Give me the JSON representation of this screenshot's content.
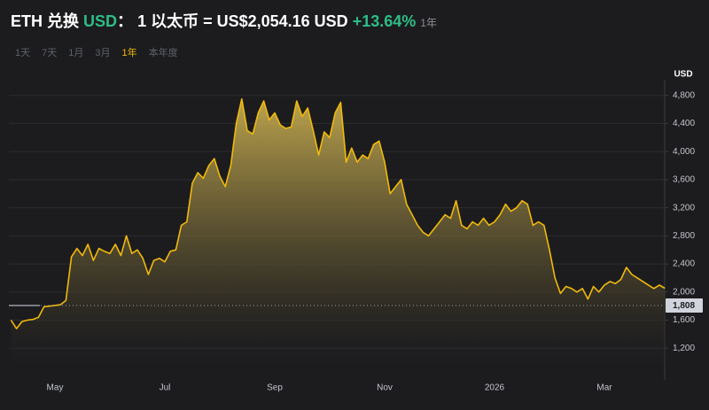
{
  "header": {
    "pair": "ETH 兑换",
    "quote": "USD",
    "sep": "：",
    "rate_text": "1 以太币 = US$2,054.16 USD",
    "change": "+13.64%",
    "period": "1年"
  },
  "ranges": [
    "1天",
    "7天",
    "1月",
    "3月",
    "1年",
    "本年度"
  ],
  "active_range": 4,
  "chart_data": {
    "type": "area",
    "y_unit": "USD",
    "categories": [
      null,
      null,
      null,
      null,
      null,
      null,
      null,
      null,
      "May",
      null,
      null,
      null,
      null,
      null,
      null,
      null,
      null,
      null,
      null,
      null,
      null,
      null,
      null,
      null,
      null,
      null,
      null,
      null,
      "Jul",
      null,
      null,
      null,
      null,
      null,
      null,
      null,
      null,
      null,
      null,
      null,
      null,
      null,
      null,
      null,
      null,
      null,
      null,
      null,
      "Sep",
      null,
      null,
      null,
      null,
      null,
      null,
      null,
      null,
      null,
      null,
      null,
      null,
      null,
      null,
      null,
      null,
      null,
      null,
      null,
      "Nov",
      null,
      null,
      null,
      null,
      null,
      null,
      null,
      null,
      null,
      null,
      null,
      null,
      null,
      null,
      null,
      null,
      null,
      null,
      null,
      "2026",
      null,
      null,
      null,
      null,
      null,
      null,
      null,
      null,
      null,
      null,
      null,
      null,
      null,
      null,
      null,
      null,
      null,
      null,
      null,
      "Mar",
      null,
      null,
      null,
      null,
      null,
      null,
      null,
      null,
      null,
      null,
      null
    ],
    "series": [
      {
        "name": "ETH",
        "color": "#f0b90b",
        "values": [
          1600,
          1480,
          1580,
          1600,
          1610,
          1640,
          1790,
          1800,
          1810,
          1820,
          1880,
          2500,
          2620,
          2520,
          2680,
          2450,
          2620,
          2580,
          2550,
          2680,
          2520,
          2800,
          2550,
          2600,
          2480,
          2250,
          2450,
          2480,
          2430,
          2580,
          2600,
          2950,
          3000,
          3550,
          3700,
          3620,
          3800,
          3900,
          3650,
          3500,
          3800,
          4400,
          4750,
          4300,
          4250,
          4550,
          4720,
          4450,
          4550,
          4380,
          4330,
          4350,
          4720,
          4500,
          4620,
          4300,
          3950,
          4280,
          4200,
          4550,
          4700,
          3850,
          4050,
          3850,
          3950,
          3900,
          4100,
          4150,
          3850,
          3400,
          3500,
          3600,
          3250,
          3100,
          2950,
          2850,
          2800,
          2900,
          3000,
          3100,
          3050,
          3300,
          2950,
          2900,
          3000,
          2950,
          3050,
          2950,
          3000,
          3100,
          3250,
          3150,
          3200,
          3300,
          3250,
          2950,
          3000,
          2950,
          2600,
          2200,
          1980,
          2080,
          2050,
          2000,
          2050,
          1900,
          2080,
          2000,
          2100,
          2150,
          2120,
          2180,
          2350,
          2250,
          2200,
          2150,
          2100,
          2050,
          2100,
          2054.16
        ]
      }
    ],
    "ylim": [
      800,
      4960
    ],
    "yticks": [
      {
        "value": 1200,
        "label": "1,200"
      },
      {
        "value": 1600,
        "label": "1,600"
      },
      {
        "value": 2000,
        "label": "2,000"
      },
      {
        "value": 2400,
        "label": "2,400"
      },
      {
        "value": 2800,
        "label": "2,800"
      },
      {
        "value": 3200,
        "label": "3,200"
      },
      {
        "value": 3600,
        "label": "3,600"
      },
      {
        "value": 4000,
        "label": "4,000"
      },
      {
        "value": 4400,
        "label": "4,400"
      },
      {
        "value": 4800,
        "label": "4,800"
      }
    ],
    "reference_line": {
      "value": 1808,
      "label": "1,808"
    },
    "grid": true
  }
}
